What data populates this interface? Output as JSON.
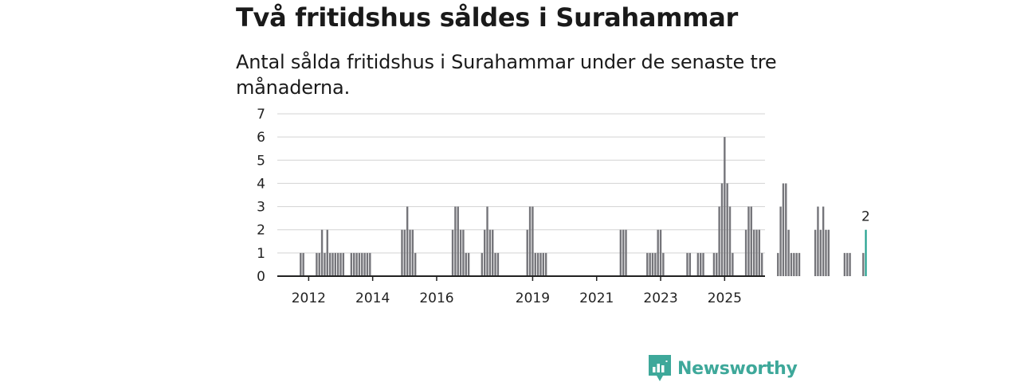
{
  "title": "Två fritidshus såldes i Surahammar",
  "subtitle": "Antal sålda fritidshus i Surahammar under de senaste tre månaderna.",
  "brand": {
    "name": "Newsworthy",
    "color": "#3ea89a"
  },
  "colors": {
    "bar": "#75757a",
    "highlight": "#21a08e",
    "grid": "#d3d3d3",
    "axis": "#222222"
  },
  "chart_data": {
    "type": "bar",
    "x_start": "2011-01",
    "ylim": [
      0,
      7
    ],
    "yticks": [
      0,
      1,
      2,
      3,
      4,
      5,
      6,
      7
    ],
    "xticks": [
      "2012",
      "2014",
      "2016",
      "2019",
      "2021",
      "2023",
      "2025"
    ],
    "grid": true,
    "values": [
      0,
      0,
      0,
      0,
      0,
      0,
      0,
      0,
      0,
      1,
      1,
      0,
      0,
      0,
      0,
      1,
      1,
      2,
      1,
      2,
      1,
      1,
      1,
      1,
      1,
      1,
      0,
      0,
      1,
      1,
      1,
      1,
      1,
      1,
      1,
      1,
      0,
      0,
      0,
      0,
      0,
      0,
      0,
      0,
      0,
      0,
      0,
      2,
      2,
      3,
      2,
      2,
      1,
      0,
      0,
      0,
      0,
      0,
      0,
      0,
      0,
      0,
      0,
      0,
      0,
      0,
      2,
      3,
      3,
      2,
      2,
      1,
      1,
      0,
      0,
      0,
      0,
      1,
      2,
      3,
      2,
      2,
      1,
      1,
      0,
      0,
      0,
      0,
      0,
      0,
      0,
      0,
      0,
      0,
      2,
      3,
      3,
      1,
      1,
      1,
      1,
      1,
      0,
      0,
      0,
      0,
      0,
      0,
      0,
      0,
      0,
      0,
      0,
      0,
      0,
      0,
      0,
      0,
      0,
      0,
      0,
      0,
      0,
      0,
      0,
      0,
      0,
      0,
      0,
      2,
      2,
      2,
      0,
      0,
      0,
      0,
      0,
      0,
      0,
      1,
      1,
      1,
      1,
      2,
      2,
      1,
      0,
      0,
      0,
      0,
      0,
      0,
      0,
      0,
      1,
      1,
      0,
      0,
      1,
      1,
      1,
      0,
      0,
      0,
      1,
      1,
      3,
      4,
      6,
      4,
      3,
      1,
      0,
      0,
      0,
      0,
      2,
      3,
      3,
      2,
      2,
      2,
      1,
      0,
      0,
      0,
      0,
      0,
      1,
      3,
      4,
      4,
      2,
      1,
      1,
      1,
      1,
      0,
      0,
      0,
      0,
      0,
      2,
      3,
      2,
      3,
      2,
      2,
      0,
      0,
      0,
      0,
      0,
      1,
      1,
      1,
      0,
      0,
      0,
      0,
      1,
      2
    ],
    "highlight": {
      "value": 2,
      "label": "2"
    }
  }
}
